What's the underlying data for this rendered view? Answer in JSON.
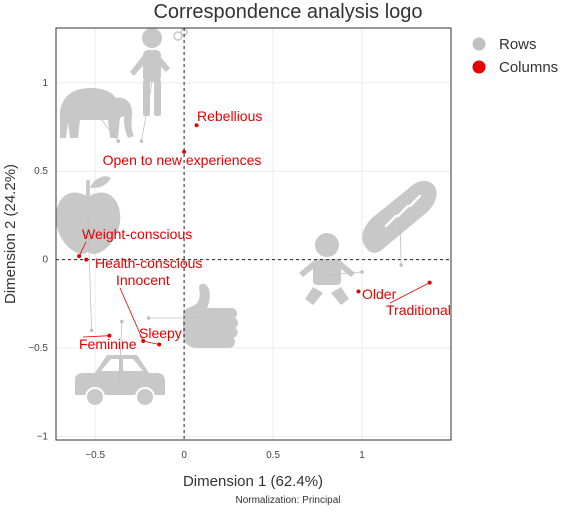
{
  "chart_data": {
    "type": "scatter",
    "title": "Correspondence analysis logo",
    "xlabel": "Dimension 1 (62.4%)",
    "ylabel": "Dimension 2 (24.2%)",
    "note": "Normalization: Principal",
    "xlim": [
      -0.72,
      1.5
    ],
    "ylim": [
      -1.02,
      1.31
    ],
    "xticks": [
      -0.5,
      0,
      0.5,
      1
    ],
    "xtick_labels": [
      "−0.5",
      "0",
      "0.5",
      "1"
    ],
    "yticks": [
      -1,
      -0.5,
      0,
      0.5,
      1
    ],
    "ytick_labels": [
      "−1",
      "−0.5",
      "0",
      "0.5",
      "1"
    ],
    "grid": true,
    "legend": {
      "placement": "top-right",
      "entries": [
        {
          "label": "Rows",
          "color": "#c0c0c0"
        },
        {
          "label": "Columns",
          "color": "#e60000"
        }
      ]
    },
    "series": [
      {
        "name": "Rows",
        "color": "#c0c0c0",
        "points": [
          {
            "icon": "person-smoking-icon",
            "x": -0.24,
            "y": 0.67
          },
          {
            "icon": "elephant-icon",
            "x": -0.37,
            "y": 0.67
          },
          {
            "icon": "apple-icon",
            "x": -0.52,
            "y": -0.4
          },
          {
            "icon": "car-icon",
            "x": -0.35,
            "y": -0.35
          },
          {
            "icon": "thumbs-up-icon",
            "x": -0.2,
            "y": -0.33
          },
          {
            "icon": "baby-icon",
            "x": 1.0,
            "y": -0.07
          },
          {
            "icon": "bread-icon",
            "x": 1.22,
            "y": -0.03
          }
        ]
      },
      {
        "name": "Columns",
        "color": "#e60000",
        "points": [
          {
            "label": "Rebellious",
            "x": 0.07,
            "y": 0.76
          },
          {
            "label": "Open to new experiences",
            "x": 0.0,
            "y": 0.61
          },
          {
            "label": "Weight-conscious",
            "x": -0.59,
            "y": 0.02
          },
          {
            "label": "Health-conscious",
            "x": -0.55,
            "y": 0.0
          },
          {
            "label": "Innocent",
            "x": -0.23,
            "y": -0.46
          },
          {
            "label": "Sleepy",
            "x": -0.14,
            "y": -0.48
          },
          {
            "label": "Feminine",
            "x": -0.42,
            "y": -0.43
          },
          {
            "label": "Older",
            "x": 0.98,
            "y": -0.18
          },
          {
            "label": "Traditional",
            "x": 1.38,
            "y": -0.13
          }
        ]
      }
    ]
  }
}
